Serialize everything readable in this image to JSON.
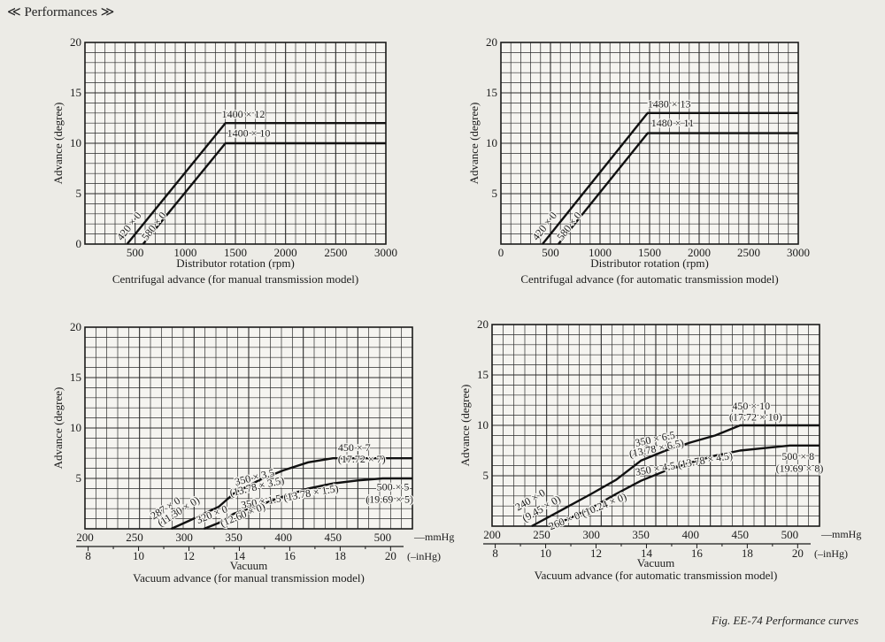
{
  "header": {
    "title": "≪ Performances ≫"
  },
  "figure_caption": "Fig. EE-74  Performance curves",
  "chart_data": [
    {
      "id": "cent-manual",
      "type": "line",
      "caption": "Centrifugal advance (for manual transmission model)",
      "xlabel": "Distributor rotation (rpm)",
      "ylabel": "Advance (degree)",
      "xlim": [
        0,
        3000
      ],
      "ylim": [
        0,
        20
      ],
      "x_ticks": [
        500,
        1000,
        1500,
        2000,
        2500,
        3000
      ],
      "x_tick_labels": [
        "500",
        "1000",
        "1500",
        "2000",
        "2500",
        "3000"
      ],
      "y_ticks": [
        0,
        5,
        10,
        15,
        20
      ],
      "y_tick_labels": [
        "0",
        "5",
        "10",
        "15",
        "20"
      ],
      "grid": true,
      "series": [
        {
          "points": [
            [
              420,
              0
            ],
            [
              1400,
              12
            ],
            [
              3000,
              12
            ]
          ]
        },
        {
          "points": [
            [
              580,
              0
            ],
            [
              1400,
              10
            ],
            [
              3000,
              10
            ]
          ]
        }
      ],
      "annotations": [
        {
          "text": "1400 × 12",
          "x": 1400,
          "y": 12.2,
          "anchor": "start",
          "dx": -4,
          "dy": -4
        },
        {
          "text": "1400 × 10",
          "x": 1400,
          "y": 10.3,
          "anchor": "start",
          "dx": 2,
          "dy": -4
        },
        {
          "text": "420 × 0",
          "x": 420,
          "y": 0.3,
          "rotate": -52,
          "anchor": "start",
          "dx": -6,
          "dy": 0
        },
        {
          "text": "580 × 0",
          "x": 580,
          "y": 0.3,
          "rotate": -52,
          "anchor": "start",
          "dx": 4,
          "dy": 0
        }
      ]
    },
    {
      "id": "cent-auto",
      "type": "line",
      "caption": "Centrifugal advance (for automatic transmission model)",
      "xlabel": "Distributor rotation (rpm)",
      "ylabel": "Advance (degree)",
      "xlim": [
        0,
        3000
      ],
      "ylim": [
        0,
        20
      ],
      "x_ticks": [
        0,
        500,
        1000,
        1500,
        2000,
        2500,
        3000
      ],
      "x_tick_labels": [
        "0",
        "500",
        "1000",
        "1500",
        "2000",
        "2500",
        "3000"
      ],
      "y_ticks": [
        5,
        10,
        15,
        20
      ],
      "y_tick_labels": [
        "5",
        "10",
        "15",
        "20"
      ],
      "grid": true,
      "series": [
        {
          "points": [
            [
              420,
              0
            ],
            [
              1480,
              13
            ],
            [
              3000,
              13
            ]
          ]
        },
        {
          "points": [
            [
              580,
              0
            ],
            [
              1480,
              11
            ],
            [
              3000,
              11
            ]
          ]
        }
      ],
      "annotations": [
        {
          "text": "1480 × 13",
          "x": 1480,
          "y": 13.2,
          "anchor": "start",
          "dx": 0,
          "dy": -4
        },
        {
          "text": "1480 × 11",
          "x": 1480,
          "y": 11.3,
          "anchor": "start",
          "dx": 4,
          "dy": -4
        },
        {
          "text": "420 × 0",
          "x": 420,
          "y": 0.3,
          "rotate": -52,
          "anchor": "start",
          "dx": -6,
          "dy": 0
        },
        {
          "text": "580 × 0",
          "x": 580,
          "y": 0.3,
          "rotate": -52,
          "anchor": "start",
          "dx": 4,
          "dy": 0
        }
      ]
    },
    {
      "id": "vac-manual",
      "type": "line",
      "caption": "Vacuum advance (for manual transmission model)",
      "xlabel": "Vacuum",
      "ylabel": "Advance (degree)",
      "xlim": [
        200,
        530
      ],
      "ylim": [
        0,
        20
      ],
      "x_ticks": [
        200,
        250,
        300,
        350,
        400,
        450,
        500
      ],
      "x_tick_labels": [
        "200",
        "250",
        "300",
        "350",
        "400",
        "450",
        "500"
      ],
      "x_unit": "—mmHg",
      "x2_ticks": [
        203.2,
        254,
        304.8,
        355.6,
        406.4,
        457.2,
        508
      ],
      "x2_tick_labels": [
        "8",
        "10",
        "12",
        "14",
        "16",
        "18",
        "20"
      ],
      "x2_unit": "(–inHg)",
      "y_ticks": [
        5,
        10,
        15,
        20
      ],
      "y_tick_labels": [
        "5",
        "10",
        "15",
        "20"
      ],
      "grid": true,
      "series": [
        {
          "points": [
            [
              287,
              0
            ],
            [
              305,
              0.8
            ],
            [
              320,
              1.5
            ],
            [
              335,
              2.2
            ],
            [
              350,
              3.5
            ],
            [
              375,
              4.8
            ],
            [
              400,
              5.8
            ],
            [
              425,
              6.6
            ],
            [
              450,
              7
            ],
            [
              530,
              7
            ]
          ]
        },
        {
          "points": [
            [
              320,
              0
            ],
            [
              335,
              0.6
            ],
            [
              350,
              1.5
            ],
            [
              380,
              2.5
            ],
            [
              400,
              3.2
            ],
            [
              425,
              4
            ],
            [
              450,
              4.5
            ],
            [
              475,
              4.8
            ],
            [
              500,
              5
            ],
            [
              530,
              5
            ]
          ]
        }
      ],
      "annotations": [
        {
          "text": "450 × 7",
          "x": 455,
          "y": 7.7,
          "anchor": "start",
          "dx": 0,
          "dy": 0
        },
        {
          "text": "(17.72 × 7)",
          "x": 455,
          "y": 6.6,
          "anchor": "start",
          "dx": 0,
          "dy": 0
        },
        {
          "text": "350 × 3.5",
          "x": 352,
          "y": 4.3,
          "rotate": -14,
          "anchor": "start",
          "dx": 0,
          "dy": 0
        },
        {
          "text": "(13.78 × 3.5)",
          "x": 347,
          "y": 3.2,
          "rotate": -14,
          "anchor": "start",
          "dx": 0,
          "dy": 0
        },
        {
          "text": "350 × 1.5 (13.78 × 1.5)",
          "x": 358,
          "y": 2.0,
          "rotate": -10,
          "anchor": "start",
          "dx": 0,
          "dy": 0
        },
        {
          "text": "500 × 5",
          "x": 494,
          "y": 3.8,
          "anchor": "start",
          "dx": 0,
          "dy": 0
        },
        {
          "text": "(19.69 × 5)",
          "x": 483,
          "y": 2.6,
          "anchor": "start",
          "dx": 0,
          "dy": 0
        },
        {
          "text": "287 × 0",
          "x": 269,
          "y": 0.9,
          "rotate": -32,
          "anchor": "start",
          "dx": 0,
          "dy": 0
        },
        {
          "text": "(11.30 × 0)",
          "x": 276,
          "y": 0.2,
          "rotate": -32,
          "anchor": "start",
          "dx": 0,
          "dy": 0
        },
        {
          "text": "320 × 0",
          "x": 314,
          "y": 0.5,
          "rotate": -22,
          "anchor": "start",
          "dx": 0,
          "dy": 0
        },
        {
          "text": "(12.60 × 0)",
          "x": 338,
          "y": 0.2,
          "rotate": -22,
          "anchor": "start",
          "dx": 0,
          "dy": 0
        }
      ]
    },
    {
      "id": "vac-auto",
      "type": "line",
      "caption": "Vacuum advance (for automatic transmission model)",
      "xlabel": "Vacuum",
      "ylabel": "Advance (degree)",
      "xlim": [
        200,
        530
      ],
      "ylim": [
        0,
        20
      ],
      "x_ticks": [
        200,
        250,
        300,
        350,
        400,
        450,
        500
      ],
      "x_tick_labels": [
        "200",
        "250",
        "300",
        "350",
        "400",
        "450",
        "500"
      ],
      "x_unit": "—mmHg",
      "x2_ticks": [
        203.2,
        254,
        304.8,
        355.6,
        406.4,
        457.2,
        508
      ],
      "x2_tick_labels": [
        "8",
        "10",
        "12",
        "14",
        "16",
        "18",
        "20"
      ],
      "x2_unit": "(–inHg)",
      "y_ticks": [
        5,
        10,
        15,
        20
      ],
      "y_tick_labels": [
        "5",
        "10",
        "15",
        "20"
      ],
      "grid": true,
      "series": [
        {
          "points": [
            [
              240,
              0
            ],
            [
              270,
              1.6
            ],
            [
              300,
              3.2
            ],
            [
              325,
              4.6
            ],
            [
              350,
              6.5
            ],
            [
              375,
              7.5
            ],
            [
              400,
              8.3
            ],
            [
              425,
              9
            ],
            [
              450,
              10
            ],
            [
              530,
              10
            ]
          ]
        },
        {
          "points": [
            [
              260,
              0
            ],
            [
              285,
              1.1
            ],
            [
              300,
              1.8
            ],
            [
              325,
              3.2
            ],
            [
              350,
              4.5
            ],
            [
              375,
              5.5
            ],
            [
              400,
              6.3
            ],
            [
              425,
              7
            ],
            [
              450,
              7.5
            ],
            [
              500,
              8
            ],
            [
              530,
              8
            ]
          ]
        }
      ],
      "annotations": [
        {
          "text": "450 × 10",
          "x": 442,
          "y": 11.6,
          "anchor": "start",
          "dx": 0,
          "dy": 0
        },
        {
          "text": "(17.72 × 10)",
          "x": 439,
          "y": 10.5,
          "anchor": "start",
          "dx": 0,
          "dy": 0
        },
        {
          "text": "350 × 6.5",
          "x": 345,
          "y": 7.9,
          "rotate": -12,
          "anchor": "start",
          "dx": 0,
          "dy": 0
        },
        {
          "text": "(13.78 × 6.5)",
          "x": 339,
          "y": 6.8,
          "rotate": -12,
          "anchor": "start",
          "dx": 0,
          "dy": 0
        },
        {
          "text": "350 × 4.5 (13.78 × 4.5)",
          "x": 345,
          "y": 5.0,
          "rotate": -10,
          "anchor": "start",
          "dx": 0,
          "dy": 0
        },
        {
          "text": "500 × 8",
          "x": 492,
          "y": 6.6,
          "anchor": "start",
          "dx": 0,
          "dy": 0
        },
        {
          "text": "(19.69 × 8)",
          "x": 486,
          "y": 5.4,
          "anchor": "start",
          "dx": 0,
          "dy": 0
        },
        {
          "text": "240 × 0",
          "x": 226,
          "y": 1.5,
          "rotate": -30,
          "anchor": "start",
          "dx": 0,
          "dy": 0
        },
        {
          "text": "(9.45 × 0)",
          "x": 233,
          "y": 0.4,
          "rotate": -30,
          "anchor": "start",
          "dx": 0,
          "dy": 0
        },
        {
          "text": "260 × 0 (10.24 × 0)",
          "x": 259,
          "y": -0.4,
          "rotate": -22,
          "anchor": "start",
          "dx": 0,
          "dy": 0
        }
      ]
    }
  ]
}
